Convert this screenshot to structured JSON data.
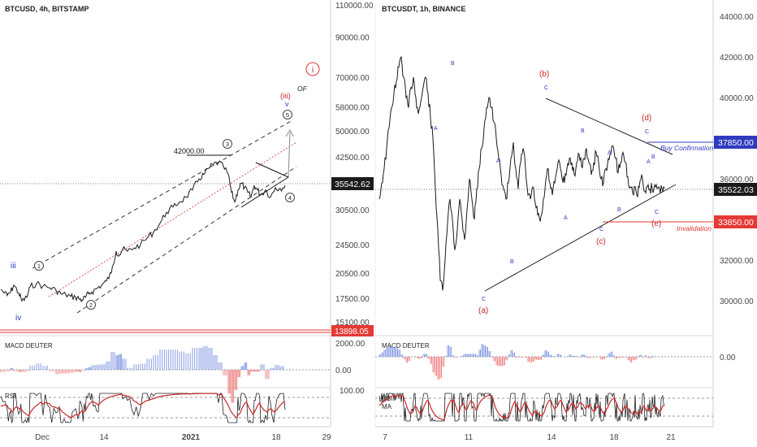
{
  "chart_data": [
    {
      "type": "line",
      "title": "BTCUSD, 4h, BITSTAMP",
      "scale": "log",
      "colors": {
        "price": "#1a1a1a",
        "channel": "#333333",
        "median": "#e05555",
        "red": "#e53935",
        "blue": "#2f3bbf"
      },
      "x_ticks": [
        "Dec",
        "14",
        "2021",
        "18",
        "29"
      ],
      "y_ticks": [
        "110000.00",
        "90000.00",
        "70000.00",
        "58000.00",
        "50000.00",
        "42500.00",
        "30500.00",
        "24500.00",
        "20500.00",
        "17500.00",
        "15100.00"
      ],
      "y_values": [
        110000,
        90000,
        70000,
        58000,
        50000,
        42500,
        30500,
        24500,
        20500,
        17500,
        15100
      ],
      "price_tag": {
        "text": "35542.62",
        "value": 35542.62
      },
      "invalidation_tag": {
        "text": "13898.05",
        "value": 13898.05
      },
      "series": [
        {
          "x": [
            0,
            8,
            12,
            16,
            22,
            26,
            32,
            36,
            44,
            52,
            60,
            68,
            74,
            80,
            86,
            92,
            96,
            100,
            104,
            108,
            112,
            118,
            124,
            130,
            136,
            142,
            146,
            150,
            156,
            164,
            172,
            180,
            188,
            196,
            204,
            212,
            220,
            228,
            236,
            244,
            250,
            256,
            262,
            268,
            274,
            280,
            284,
            288,
            292,
            296,
            300,
            304,
            308,
            312,
            316,
            320,
            326,
            332,
            338,
            344,
            350
          ],
          "y": [
            18500,
            17800,
            18200,
            19000,
            18100,
            17200,
            17600,
            18800,
            19200,
            18900,
            18700,
            18400,
            18000,
            17900,
            17700,
            17600,
            17500,
            17300,
            17600,
            18000,
            18200,
            18600,
            19000,
            19500,
            20500,
            23500,
            23000,
            23800,
            23500,
            24000,
            24500,
            25500,
            26500,
            28000,
            30000,
            31000,
            32000,
            33000,
            34500,
            37000,
            38000,
            39500,
            40500,
            41000,
            40000,
            38000,
            34000,
            32000,
            34500,
            36000,
            35000,
            34000,
            33000,
            35500,
            34500,
            33500,
            34500,
            33000,
            35000,
            34800,
            35500
          ]
        }
      ],
      "annotations": [
        {
          "text": "42000.00",
          "value": 42000
        },
        {
          "text": "iii",
          "color": "#2f3bbf"
        },
        {
          "text": "iv",
          "color": "#2f3bbf"
        },
        {
          "text": "1"
        },
        {
          "text": "2"
        },
        {
          "text": "3"
        },
        {
          "text": "4"
        },
        {
          "text": "5"
        },
        {
          "text": "v",
          "color": "#2f3bbf"
        },
        {
          "text": "(iii)",
          "color": "#c62828"
        },
        {
          "text": "i",
          "color": "#c62828"
        },
        {
          "text": "OF"
        }
      ],
      "indicators": [
        {
          "name": "MACD DEUTER",
          "ticks": [
            "2000.00",
            "0.00"
          ]
        },
        {
          "name": "RSI",
          "ticks": [
            "100.00"
          ]
        }
      ]
    },
    {
      "type": "line",
      "title": "BTCUSDT, 1h, BINANCE",
      "x_ticks": [
        "7",
        "11",
        "14",
        "18",
        "21"
      ],
      "y_ticks": [
        "44000.00",
        "42000.00",
        "40000.00",
        "36000.00",
        "32000.00",
        "30000.00"
      ],
      "y_values": [
        44000,
        42000,
        40000,
        36000,
        32000,
        30000
      ],
      "ylim": [
        28400,
        44600
      ],
      "price_tag": {
        "text": "35522.03",
        "value": 35522.03
      },
      "buy_tag": {
        "text": "37850.00",
        "value": 37850,
        "label": "Buy Confirmation"
      },
      "invalidation_tag": {
        "text": "33850.00",
        "value": 33850,
        "label": "Invalidation"
      },
      "series": [
        {
          "x": [
            0,
            3,
            6,
            9,
            12,
            15,
            18,
            21,
            24,
            27,
            30,
            33,
            36,
            39,
            42,
            45,
            48,
            51,
            54,
            57,
            60,
            63,
            66,
            69,
            72,
            75,
            78,
            81,
            84,
            87,
            90,
            93,
            96,
            99,
            102,
            105,
            108,
            111,
            114,
            117,
            120,
            123,
            126,
            129,
            132,
            135,
            138,
            141,
            144,
            147,
            150,
            153,
            156,
            159,
            162,
            165,
            168,
            171,
            174,
            177,
            180,
            183,
            186,
            189,
            192,
            195,
            198,
            201,
            204,
            207,
            210,
            213,
            216,
            219,
            222,
            225,
            228,
            231,
            234,
            237,
            240,
            243,
            246,
            249,
            252,
            255,
            258,
            261,
            264,
            267,
            270,
            273,
            276,
            279,
            282,
            285,
            288,
            291,
            294,
            297,
            300,
            303,
            306,
            309,
            312,
            315,
            318,
            321,
            324,
            327,
            330,
            333,
            336,
            339,
            342,
            345,
            348,
            351
          ],
          "y": [
            35000,
            35800,
            36500,
            37500,
            38500,
            39500,
            40200,
            40800,
            41500,
            42000,
            41000,
            40000,
            39500,
            40500,
            41000,
            40000,
            39200,
            39800,
            40500,
            41000,
            40200,
            39000,
            38000,
            35500,
            33500,
            31000,
            30500,
            32000,
            33800,
            35000,
            34000,
            32500,
            33500,
            35000,
            34000,
            33000,
            34500,
            36000,
            35000,
            34000,
            35500,
            36500,
            37500,
            38500,
            39500,
            40000,
            39500,
            38800,
            38000,
            37000,
            36200,
            35500,
            35000,
            35800,
            37000,
            37800,
            36500,
            35500,
            36800,
            37500,
            36500,
            35200,
            35000,
            35600,
            34800,
            34200,
            33900,
            34500,
            35500,
            36500,
            35800,
            35200,
            35800,
            36500,
            36800,
            36000,
            35800,
            36500,
            37000,
            36800,
            36200,
            36800,
            37200,
            36600,
            37000,
            37500,
            36800,
            36200,
            36800,
            37300,
            36800,
            36000,
            35800,
            36500,
            37000,
            37200,
            37600,
            37000,
            36300,
            36800,
            37300,
            36800,
            36100,
            35600,
            35300,
            35600,
            35100,
            35900,
            36000,
            35400,
            35600,
            35500,
            35522,
            35700,
            35522,
            35522,
            35522,
            35522
          ]
        }
      ],
      "annotations": [
        {
          "text": "(a)",
          "color": "#c62828"
        },
        {
          "text": "(b)",
          "color": "#c62828"
        },
        {
          "text": "(c)",
          "color": "#c62828"
        },
        {
          "text": "(d)",
          "color": "#c62828"
        },
        {
          "text": "(e)",
          "color": "#c62828"
        },
        {
          "text": "A",
          "color": "#2f3bbf"
        },
        {
          "text": "B",
          "color": "#2f3bbf"
        },
        {
          "text": "C",
          "color": "#2f3bbf"
        }
      ],
      "indicators": [
        {
          "name": "MACD DEUTER",
          "ticks": [
            "0.00"
          ]
        },
        {
          "name": "RSI",
          "ticks": []
        },
        {
          "name": "MA",
          "ticks": []
        }
      ]
    }
  ]
}
